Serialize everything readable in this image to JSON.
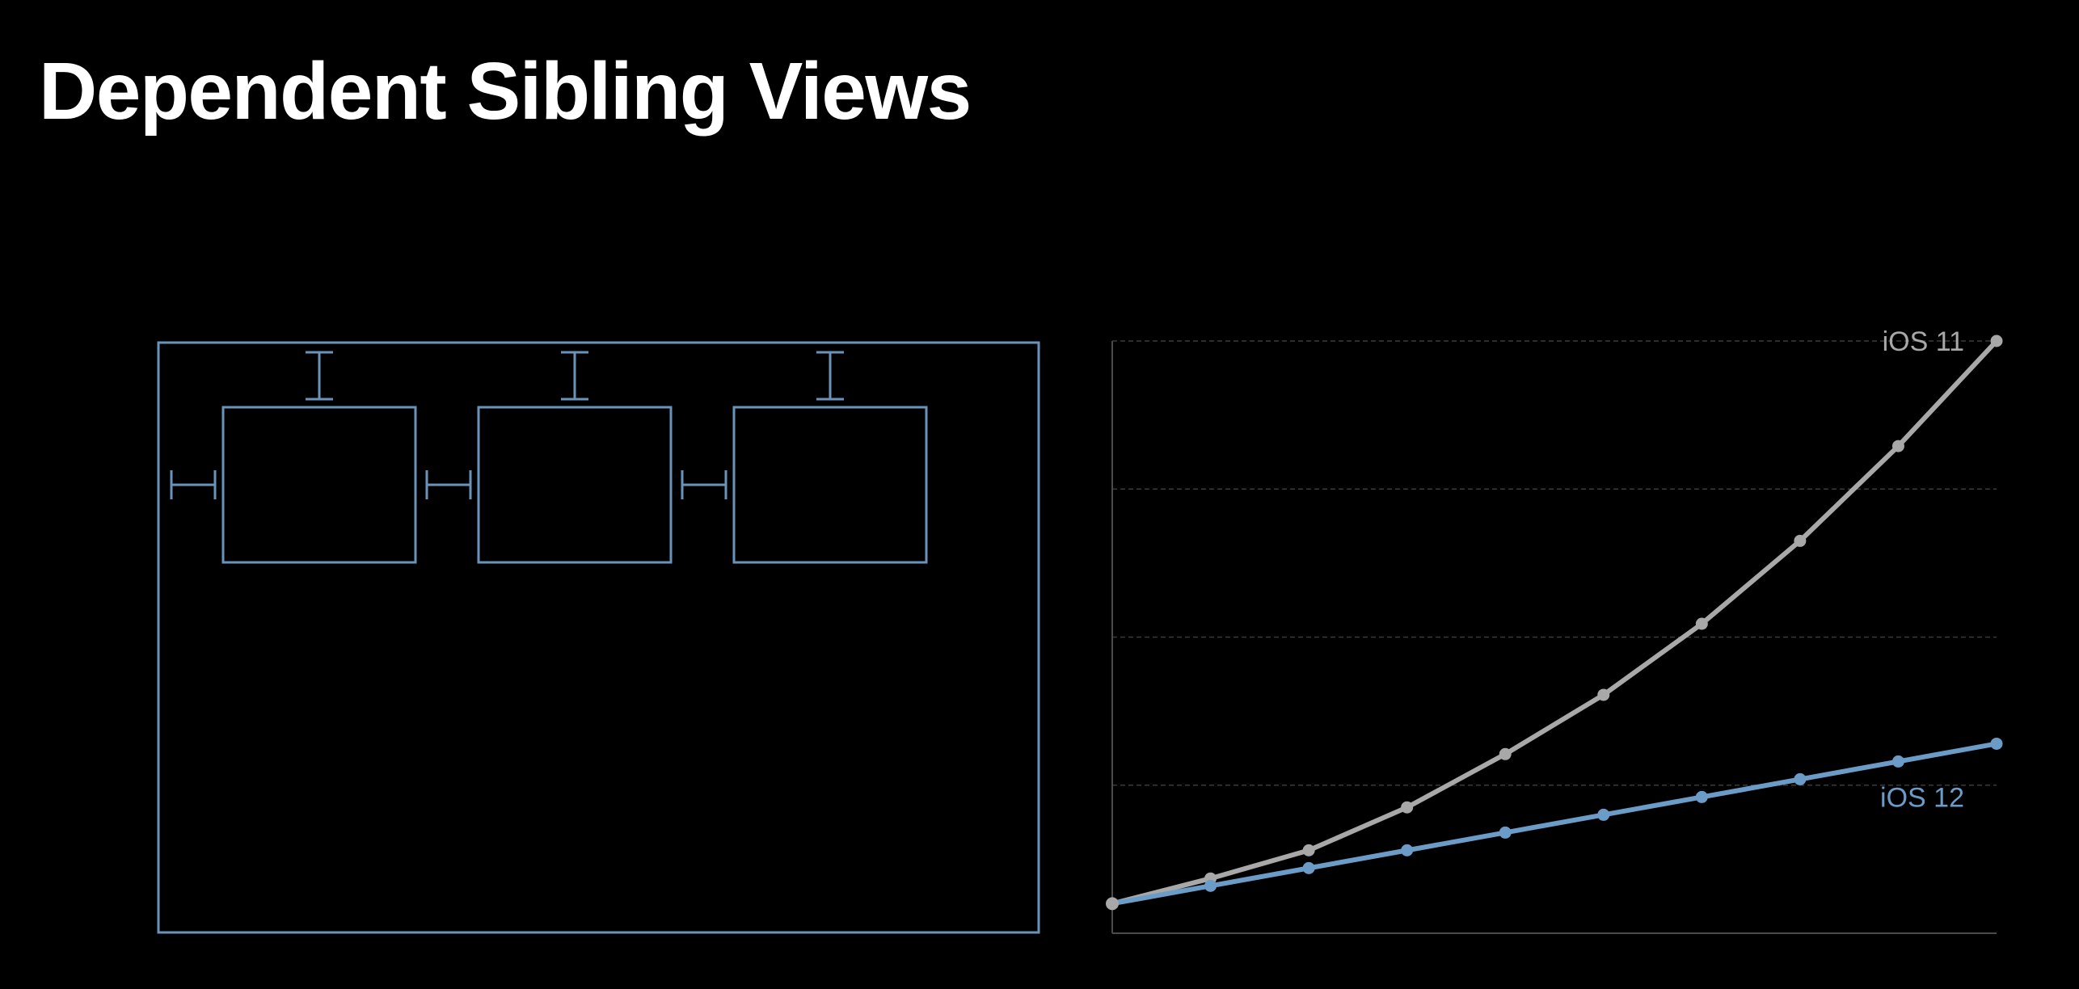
{
  "slide": {
    "title": "Dependent Sibling Views"
  },
  "colors": {
    "background": "#000000",
    "title": "#ffffff",
    "diagram_stroke": "#6a93b9",
    "ios11": "#a8a8a8",
    "ios12": "#6b9cc8",
    "gridline": "#3a3a3a",
    "axis": "#4a4a4a"
  },
  "diagram": {
    "sibling_view_count": 3,
    "has_leading_constraints": true,
    "has_top_constraints": true
  },
  "chart_data": {
    "type": "line",
    "title": "",
    "xlabel": "",
    "ylabel": "",
    "x": [
      0,
      1,
      2,
      3,
      4,
      5,
      6,
      7,
      8,
      9
    ],
    "ylim": [
      0,
      4
    ],
    "grid": "horizontal",
    "legend": "inline-right",
    "series": [
      {
        "name": "iOS 11",
        "color": "#a8a8a8",
        "values": [
          0.2,
          0.37,
          0.56,
          0.85,
          1.21,
          1.61,
          2.09,
          2.65,
          3.29,
          4.0
        ]
      },
      {
        "name": "iOS 12",
        "color": "#6b9cc8",
        "values": [
          0.2,
          0.32,
          0.44,
          0.56,
          0.68,
          0.8,
          0.92,
          1.04,
          1.16,
          1.28
        ]
      }
    ]
  }
}
